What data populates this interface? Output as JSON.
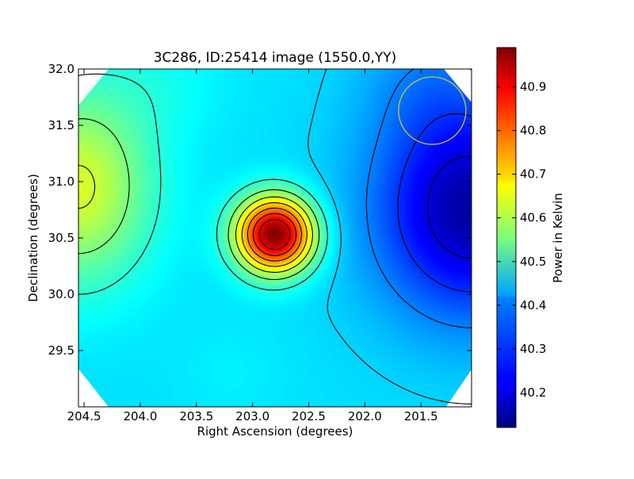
{
  "chart_data": {
    "type": "heatmap",
    "title": "3C286, ID:25414 image (1550.0,YY)",
    "xlabel": "Right Ascension (degrees)",
    "ylabel": "Declination (degrees)",
    "colorbar_label": "Power in Kelvin",
    "colormap": "jet",
    "xlim": [
      204.55,
      201.05
    ],
    "ylim": [
      29.0,
      32.0
    ],
    "x_ticks": [
      204.5,
      204.0,
      203.5,
      203.0,
      202.5,
      202.0,
      201.5
    ],
    "x_tick_labels": [
      "204.5",
      "204.0",
      "203.5",
      "203.0",
      "202.5",
      "202.0",
      "201.5"
    ],
    "y_ticks": [
      29.5,
      30.0,
      30.5,
      31.0,
      31.5,
      32.0
    ],
    "y_tick_labels": [
      "29.5",
      "30.0",
      "30.5",
      "31.0",
      "31.5",
      "32.0"
    ],
    "value_range": [
      40.12,
      40.99
    ],
    "colorbar_ticks": [
      40.2,
      40.3,
      40.4,
      40.5,
      40.6,
      40.7,
      40.8,
      40.9
    ],
    "colorbar_tick_labels": [
      "40.2",
      "40.3",
      "40.4",
      "40.5",
      "40.6",
      "40.7",
      "40.8",
      "40.9"
    ],
    "peak": {
      "ra": 202.8,
      "dec": 30.53,
      "value": 40.99
    },
    "minimum": {
      "ra": 201.1,
      "dec": 30.75,
      "value": 40.12
    },
    "beam_circle": {
      "ra": 201.4,
      "dec": 31.63,
      "radius_deg": 0.3,
      "color": "#c8c832"
    },
    "contours": "black",
    "grid": false
  }
}
